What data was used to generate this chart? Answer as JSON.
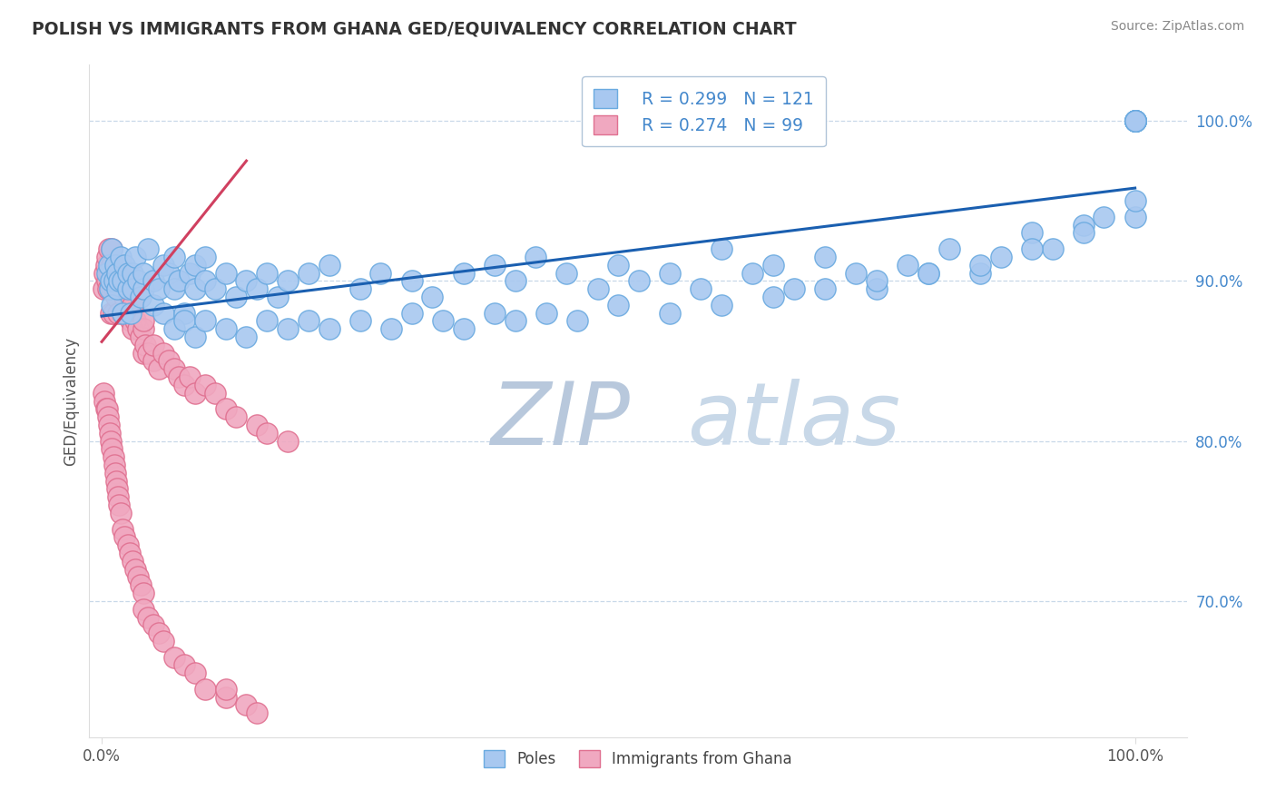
{
  "title": "POLISH VS IMMIGRANTS FROM GHANA GED/EQUIVALENCY CORRELATION CHART",
  "source": "Source: ZipAtlas.com",
  "ylabel": "GED/Equivalency",
  "blue_color": "#a8c8f0",
  "blue_edge_color": "#6aaae0",
  "pink_color": "#f0a8c0",
  "pink_edge_color": "#e07090",
  "blue_line_color": "#1a5fb0",
  "pink_line_color": "#d04060",
  "watermark_color": "#ccd8e8",
  "ytick_color": "#4488cc",
  "grid_color": "#c8d8e8",
  "title_color": "#333333",
  "source_color": "#888888",
  "ylabel_color": "#555555",
  "blue_trend_x0": 0.0,
  "blue_trend_y0": 0.878,
  "blue_trend_x1": 1.0,
  "blue_trend_y1": 0.958,
  "pink_trend_x0": 0.0,
  "pink_trend_y0": 0.862,
  "pink_trend_x1": 0.14,
  "pink_trend_y1": 0.975,
  "ylim_low": 0.615,
  "ylim_high": 1.035,
  "xlim_low": -0.012,
  "xlim_high": 1.05,
  "blue_x": [
    0.005,
    0.007,
    0.008,
    0.009,
    0.01,
    0.01,
    0.012,
    0.013,
    0.015,
    0.015,
    0.017,
    0.018,
    0.02,
    0.02,
    0.022,
    0.025,
    0.025,
    0.028,
    0.03,
    0.03,
    0.032,
    0.035,
    0.038,
    0.04,
    0.04,
    0.045,
    0.05,
    0.05,
    0.055,
    0.06,
    0.06,
    0.065,
    0.07,
    0.07,
    0.075,
    0.08,
    0.085,
    0.09,
    0.09,
    0.1,
    0.1,
    0.11,
    0.12,
    0.13,
    0.14,
    0.15,
    0.16,
    0.17,
    0.18,
    0.2,
    0.22,
    0.25,
    0.27,
    0.3,
    0.32,
    0.35,
    0.38,
    0.4,
    0.42,
    0.45,
    0.48,
    0.5,
    0.52,
    0.55,
    0.58,
    0.6,
    0.63,
    0.65,
    0.67,
    0.7,
    0.73,
    0.75,
    0.78,
    0.8,
    0.82,
    0.85,
    0.87,
    0.9,
    0.92,
    0.95,
    0.97,
    1.0,
    1.0,
    1.0,
    1.0,
    1.0,
    1.0,
    1.0,
    1.0,
    1.0,
    0.07,
    0.08,
    0.09,
    0.1,
    0.12,
    0.14,
    0.16,
    0.18,
    0.2,
    0.22,
    0.25,
    0.28,
    0.3,
    0.33,
    0.35,
    0.38,
    0.4,
    0.43,
    0.46,
    0.5,
    0.55,
    0.6,
    0.65,
    0.7,
    0.75,
    0.8,
    0.85,
    0.9,
    0.95,
    1.0,
    1.0
  ],
  "blue_y": [
    0.905,
    0.91,
    0.895,
    0.9,
    0.885,
    0.92,
    0.9,
    0.91,
    0.905,
    0.895,
    0.9,
    0.915,
    0.88,
    0.9,
    0.91,
    0.895,
    0.905,
    0.88,
    0.905,
    0.895,
    0.915,
    0.9,
    0.89,
    0.895,
    0.905,
    0.92,
    0.885,
    0.9,
    0.895,
    0.91,
    0.88,
    0.905,
    0.895,
    0.915,
    0.9,
    0.88,
    0.905,
    0.895,
    0.91,
    0.9,
    0.915,
    0.895,
    0.905,
    0.89,
    0.9,
    0.895,
    0.905,
    0.89,
    0.9,
    0.905,
    0.91,
    0.895,
    0.905,
    0.9,
    0.89,
    0.905,
    0.91,
    0.9,
    0.915,
    0.905,
    0.895,
    0.91,
    0.9,
    0.905,
    0.895,
    0.92,
    0.905,
    0.91,
    0.895,
    0.915,
    0.905,
    0.895,
    0.91,
    0.905,
    0.92,
    0.905,
    0.915,
    0.93,
    0.92,
    0.935,
    0.94,
    1.0,
    1.0,
    1.0,
    1.0,
    1.0,
    1.0,
    1.0,
    1.0,
    1.0,
    0.87,
    0.875,
    0.865,
    0.875,
    0.87,
    0.865,
    0.875,
    0.87,
    0.875,
    0.87,
    0.875,
    0.87,
    0.88,
    0.875,
    0.87,
    0.88,
    0.875,
    0.88,
    0.875,
    0.885,
    0.88,
    0.885,
    0.89,
    0.895,
    0.9,
    0.905,
    0.91,
    0.92,
    0.93,
    0.94,
    0.95
  ],
  "pink_x": [
    0.002,
    0.003,
    0.004,
    0.005,
    0.005,
    0.006,
    0.007,
    0.007,
    0.008,
    0.008,
    0.009,
    0.009,
    0.01,
    0.01,
    0.01,
    0.011,
    0.012,
    0.012,
    0.013,
    0.014,
    0.015,
    0.015,
    0.016,
    0.017,
    0.018,
    0.019,
    0.02,
    0.02,
    0.022,
    0.025,
    0.025,
    0.027,
    0.028,
    0.03,
    0.03,
    0.032,
    0.035,
    0.038,
    0.04,
    0.04,
    0.04,
    0.042,
    0.045,
    0.05,
    0.05,
    0.055,
    0.06,
    0.065,
    0.07,
    0.075,
    0.08,
    0.085,
    0.09,
    0.1,
    0.11,
    0.12,
    0.13,
    0.15,
    0.16,
    0.18,
    0.002,
    0.003,
    0.004,
    0.005,
    0.006,
    0.007,
    0.008,
    0.009,
    0.01,
    0.011,
    0.012,
    0.013,
    0.014,
    0.015,
    0.016,
    0.017,
    0.018,
    0.02,
    0.022,
    0.025,
    0.027,
    0.03,
    0.032,
    0.035,
    0.038,
    0.04,
    0.04,
    0.045,
    0.05,
    0.055,
    0.06,
    0.07,
    0.08,
    0.09,
    0.1,
    0.12,
    0.14,
    0.15,
    0.12
  ],
  "pink_y": [
    0.895,
    0.905,
    0.91,
    0.9,
    0.915,
    0.895,
    0.905,
    0.92,
    0.895,
    0.905,
    0.88,
    0.9,
    0.895,
    0.91,
    0.92,
    0.88,
    0.9,
    0.895,
    0.905,
    0.89,
    0.895,
    0.905,
    0.88,
    0.9,
    0.91,
    0.895,
    0.88,
    0.905,
    0.89,
    0.905,
    0.88,
    0.89,
    0.875,
    0.885,
    0.87,
    0.875,
    0.87,
    0.865,
    0.87,
    0.875,
    0.855,
    0.86,
    0.855,
    0.85,
    0.86,
    0.845,
    0.855,
    0.85,
    0.845,
    0.84,
    0.835,
    0.84,
    0.83,
    0.835,
    0.83,
    0.82,
    0.815,
    0.81,
    0.805,
    0.8,
    0.83,
    0.825,
    0.82,
    0.82,
    0.815,
    0.81,
    0.805,
    0.8,
    0.795,
    0.79,
    0.785,
    0.78,
    0.775,
    0.77,
    0.765,
    0.76,
    0.755,
    0.745,
    0.74,
    0.735,
    0.73,
    0.725,
    0.72,
    0.715,
    0.71,
    0.705,
    0.695,
    0.69,
    0.685,
    0.68,
    0.675,
    0.665,
    0.66,
    0.655,
    0.645,
    0.64,
    0.635,
    0.63,
    0.645
  ]
}
